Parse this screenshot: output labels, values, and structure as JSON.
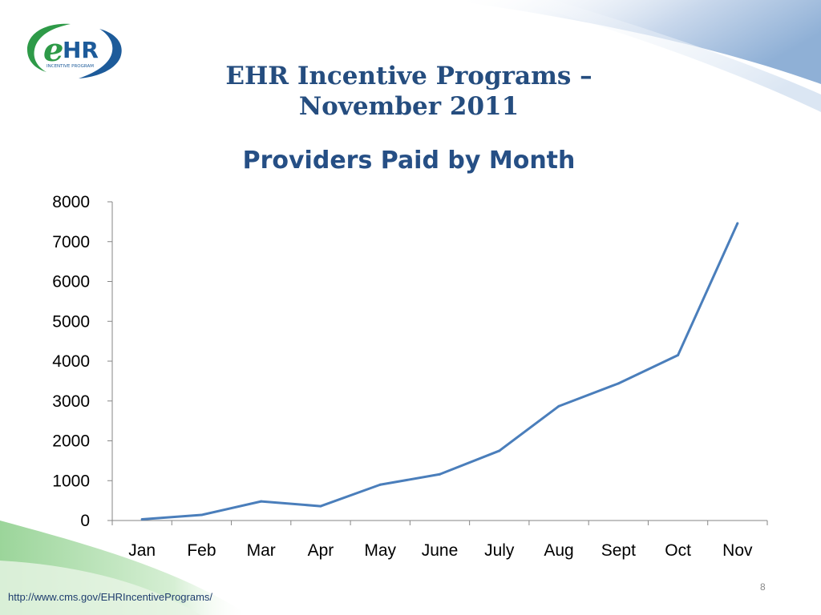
{
  "logo": {
    "letters": "eHR",
    "tagline": "INCENTIVE PROGRAM"
  },
  "slide": {
    "title_line1": "EHR Incentive Programs –",
    "title_line2": "November 2011",
    "footer_link": "http://www.cms.gov/EHRIncentivePrograms/",
    "page_number": "8"
  },
  "colors": {
    "title": "#254d7f",
    "line": "#4a7ebb",
    "logo_green": "#2e9a48",
    "logo_blue": "#1d5b9a"
  },
  "chart_data": {
    "type": "line",
    "title": "Providers Paid by Month",
    "xlabel": "",
    "ylabel": "",
    "categories": [
      "Jan",
      "Feb",
      "Mar",
      "Apr",
      "May",
      "June",
      "July",
      "Aug",
      "Sept",
      "Oct",
      "Nov"
    ],
    "series": [
      {
        "values": [
          30,
          140,
          480,
          360,
          900,
          1160,
          1750,
          2870,
          3440,
          4150,
          7460
        ]
      }
    ],
    "yticks": [
      0,
      1000,
      2000,
      3000,
      4000,
      5000,
      6000,
      7000,
      8000
    ],
    "ylim": [
      0,
      8000
    ],
    "grid": false,
    "legend": "none"
  }
}
